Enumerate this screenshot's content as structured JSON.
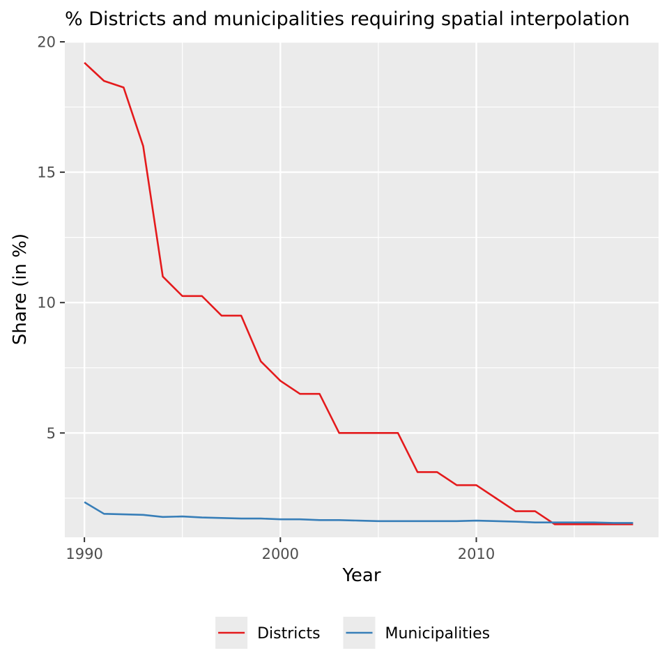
{
  "chart_data": {
    "type": "line",
    "title": "% Districts and municipalities requiring spatial interpolation",
    "xlabel": "Year",
    "ylabel": "Share (in %)",
    "xlim": [
      1989,
      2019.3
    ],
    "ylim": [
      1.0,
      20.0
    ],
    "x_ticks": [
      1990,
      2000,
      2010
    ],
    "x_tick_labels": [
      "1990",
      "2000",
      "2010"
    ],
    "x_minor_ticks": [
      1995,
      2005,
      2015
    ],
    "y_ticks": [
      5,
      10,
      15,
      20
    ],
    "y_tick_labels": [
      "5",
      "10",
      "15",
      "20"
    ],
    "y_minor_ticks": [
      2.5,
      7.5,
      12.5,
      17.5
    ],
    "grid": true,
    "legend_position": "bottom",
    "panel_background": "#ebebeb",
    "x": [
      1990,
      1991,
      1992,
      1993,
      1994,
      1995,
      1996,
      1997,
      1998,
      1999,
      2000,
      2001,
      2002,
      2003,
      2004,
      2005,
      2006,
      2007,
      2008,
      2009,
      2010,
      2011,
      2012,
      2013,
      2014,
      2015,
      2016,
      2017,
      2018
    ],
    "series": [
      {
        "name": "Districts",
        "color": "#e41a1c",
        "values": [
          19.2,
          18.5,
          18.25,
          16.0,
          11.0,
          10.25,
          10.25,
          9.5,
          9.5,
          7.75,
          7.0,
          6.5,
          6.5,
          5.0,
          5.0,
          5.0,
          5.0,
          3.5,
          3.5,
          3.0,
          3.0,
          2.5,
          2.0,
          2.0,
          1.5,
          1.5,
          1.5,
          1.5,
          1.5
        ]
      },
      {
        "name": "Municipalities",
        "color": "#377eb8",
        "values": [
          2.35,
          1.9,
          1.88,
          1.86,
          1.78,
          1.8,
          1.76,
          1.74,
          1.72,
          1.72,
          1.69,
          1.69,
          1.66,
          1.66,
          1.64,
          1.62,
          1.62,
          1.62,
          1.62,
          1.62,
          1.64,
          1.62,
          1.6,
          1.57,
          1.57,
          1.57,
          1.57,
          1.55,
          1.55
        ]
      }
    ]
  }
}
